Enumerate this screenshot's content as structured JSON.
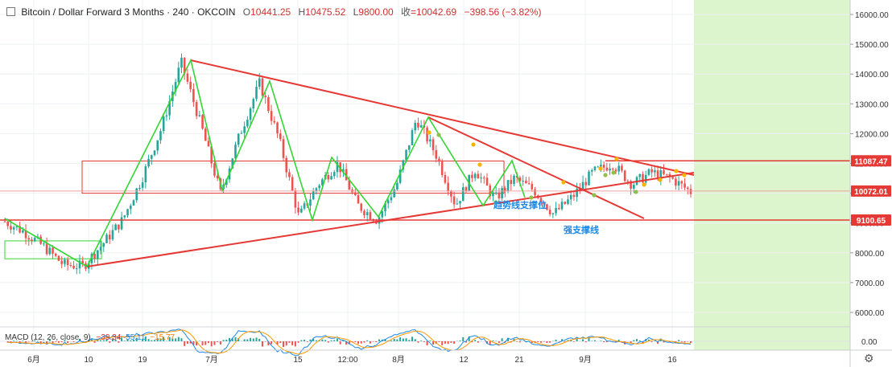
{
  "header": {
    "symbol": "Bitcoin / Dollar Forward 3 Months · 240 · OKCOIN",
    "open_label": "O",
    "open": "10441.25",
    "high_label": "H",
    "high": "10475.52",
    "low_label": "L",
    "low": "9800.00",
    "close_label": "收",
    "close": "=10042.69",
    "change": "−398.56 (−3.82%)"
  },
  "macd": {
    "label": "MACD (12, 26, close, 9)",
    "v1": "−39.34",
    "v2": "55.11",
    "v3": "−15.77"
  },
  "colors": {
    "up": "#26a69a",
    "down": "#ef5350",
    "resistance": "#e53935",
    "wave": "#33d633",
    "future_zone": "#dcf5cd",
    "annotation": "#1e88e5"
  },
  "chart_data": {
    "type": "candlestick",
    "ylim": [
      5500,
      16500
    ],
    "y_ticks": [
      6000,
      7000,
      8000,
      9000,
      10000,
      11000,
      12000,
      13000,
      14000,
      15000,
      16000
    ],
    "y_tick_labels": [
      "6000.00",
      "7000.00",
      "8000.00",
      "9000.00",
      "10000.00",
      "11000.00",
      "12000.00",
      "13000.00",
      "14000.00",
      "15000.00",
      "16000.00"
    ],
    "x_tick_labels": [
      "6月",
      "10",
      "19",
      "7月",
      "15",
      "12:00",
      "8月",
      "12",
      "21",
      "9月",
      "16"
    ],
    "price_tags": [
      {
        "label": "11087.47",
        "value": 11087.47
      },
      {
        "label": "10072.01",
        "value": 10072.01
      },
      {
        "label": "9100.65",
        "value": 9100.65
      }
    ],
    "macd_tick_label": "0.00",
    "annotations": [
      {
        "text": "趋势线支撑位"
      },
      {
        "text": "强支撑线"
      }
    ],
    "price_path": [
      9050,
      8700,
      8200,
      7600,
      7550,
      8300,
      9100,
      10500,
      12200,
      14400,
      12300,
      10000,
      12000,
      13700,
      11800,
      9200,
      10300,
      11000,
      9600,
      9100,
      10300,
      12500,
      11300,
      9600,
      10800,
      9800,
      10500,
      10100,
      9300,
      9900,
      10700,
      11000,
      10300,
      10700,
      10500,
      10050
    ],
    "wave_points": [
      [
        7500,
        7600
      ],
      [
        14450
      ],
      [
        10000
      ],
      [
        13750
      ],
      [
        9000
      ],
      [
        11000
      ],
      [
        9050
      ],
      [
        12550
      ],
      [
        9550
      ],
      [
        10800
      ],
      [
        9750
      ]
    ],
    "horizontal_levels": [
      {
        "value": 11087.47
      },
      {
        "value": 10072.01
      },
      {
        "value": 9100.65
      }
    ],
    "zone": {
      "low": 10000,
      "high": 11000
    },
    "grid": true
  }
}
